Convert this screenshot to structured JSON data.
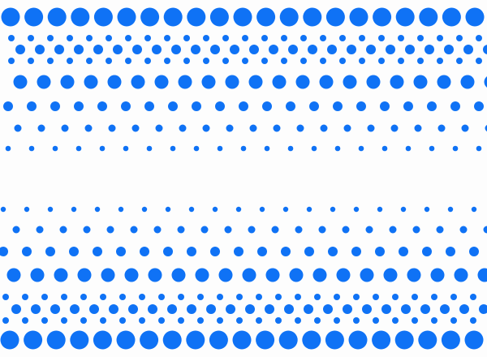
{
  "pattern": {
    "dot_color": "#0f72f5",
    "background_color": "#fdfdfd"
  }
}
